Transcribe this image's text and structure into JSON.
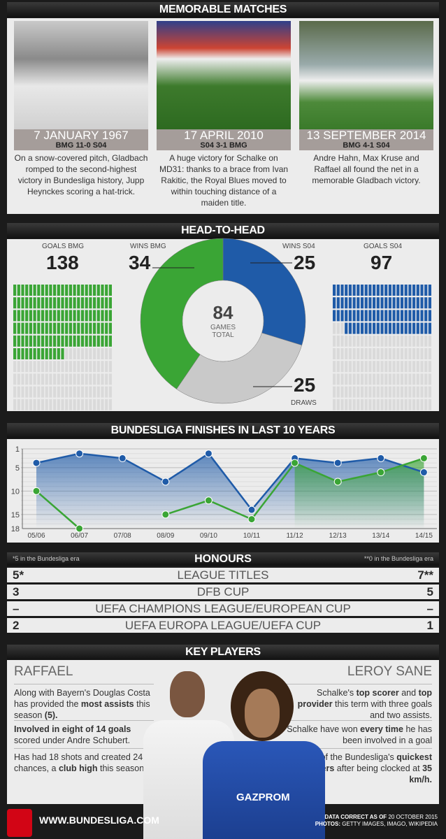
{
  "memorable": {
    "title": "MEMORABLE MATCHES",
    "matches": [
      {
        "date": "7 JANUARY 1967",
        "score": "BMG 11-0 S04",
        "text": "On a snow-covered pitch, Gladbach romped to the second-highest victory in Bundesliga history, Jupp Heynckes scoring a hat-trick."
      },
      {
        "date": "17 APRIL 2010",
        "score": "S04 3-1 BMG",
        "text": "A huge victory for Schalke on MD31: thanks to a brace from Ivan Rakitic, the Royal Blues moved to within touching distance of a maiden title."
      },
      {
        "date": "13 SEPTEMBER 2014",
        "score": "BMG 4-1 S04",
        "text": "Andre Hahn, Max Kruse and Raffael all found the net in a memorable Gladbach victory."
      }
    ]
  },
  "h2h": {
    "title": "HEAD-TO-HEAD",
    "goals_bmg_label": "GOALS BMG",
    "goals_bmg": "138",
    "wins_bmg_label": "WINS BMG",
    "wins_bmg": "34",
    "wins_s04_label": "WINS S04",
    "wins_s04": "25",
    "goals_s04_label": "GOALS S04",
    "goals_s04": "97",
    "total": "84",
    "total_label1": "GAMES",
    "total_label2": "TOTAL",
    "draws": "25",
    "draws_label": "DRAWS"
  },
  "colors": {
    "bmg": "#3aa535",
    "s04": "#1f5ba8",
    "draw": "#c9c9c9",
    "empty": "#dadada"
  },
  "chart_data": [
    {
      "type": "pie",
      "donut": true,
      "slices": [
        {
          "label": "WINS S04",
          "value": 25,
          "color": "#1f5ba8"
        },
        {
          "label": "DRAWS",
          "value": 25,
          "color": "#c9c9c9"
        },
        {
          "label": "WINS BMG",
          "value": 34,
          "color": "#3aa535"
        }
      ],
      "center_text": "84 GAMES TOTAL"
    },
    {
      "type": "pictogram",
      "series": [
        {
          "name": "GOALS BMG",
          "value": 138,
          "color": "#3aa535"
        },
        {
          "name": "GOALS S04",
          "value": 97,
          "color": "#1f5ba8"
        }
      ],
      "units_per_row": 25,
      "total_units": 250
    },
    {
      "type": "line",
      "title": "BUNDESLIGA FINISHES IN LAST 10 YEARS",
      "categories": [
        "05/06",
        "06/07",
        "07/08",
        "08/09",
        "09/10",
        "10/11",
        "11/12",
        "12/13",
        "13/14",
        "14/15"
      ],
      "series": [
        {
          "color": "#1f5ba8",
          "values": [
            4,
            2,
            3,
            8,
            2,
            14,
            3,
            4,
            3,
            6
          ]
        },
        {
          "color": "#3aa535",
          "values": [
            10,
            18,
            null,
            15,
            12,
            16,
            4,
            8,
            6,
            3
          ]
        }
      ],
      "yticks": [
        1,
        5,
        10,
        15,
        18
      ],
      "ylim": [
        1,
        18
      ],
      "y_inverted": true,
      "grid": true
    }
  ],
  "honours": {
    "title": "HONOURS",
    "note_left": "*5 in the Bundesliga era",
    "note_right": "**0 in the Bundesliga era",
    "rows": [
      {
        "left": "5*",
        "label": "LEAGUE TITLES",
        "right": "7**"
      },
      {
        "left": "3",
        "label": "DFB CUP",
        "right": "5"
      },
      {
        "left": "–",
        "label": "UEFA CHAMPIONS LEAGUE/EUROPEAN CUP",
        "right": "–"
      },
      {
        "left": "2",
        "label": "UEFA EUROPA LEAGUE/UEFA CUP",
        "right": "1"
      }
    ]
  },
  "players": {
    "title": "KEY PLAYERS",
    "left": {
      "name": "RAFFAEL",
      "facts": [
        [
          "Along with Bayern's Douglas Costa has provided the ",
          "most assists",
          " this season ",
          "(5)."
        ],
        [
          "",
          "Involved in eight of 14 goals",
          " scored under Andre Schubert.",
          ""
        ],
        [
          "Has had 18 shots and created 24 chances, a ",
          "club high",
          " this season.",
          ""
        ]
      ]
    },
    "right": {
      "name": "LEROY SANE",
      "facts": [
        [
          "Schalke's ",
          "top scorer",
          " and ",
          "top provider",
          " this term with three goals and two assists."
        ],
        [
          "Schalke have won ",
          "every time",
          " he has been involved in a goal",
          "",
          ""
        ],
        [
          "One of the Bundesliga's ",
          "quickest players",
          " after being clocked at ",
          "35 km/h.",
          ""
        ]
      ]
    }
  },
  "footer": {
    "logo_text": "BUNDESLIGA",
    "url": "WWW.BUNDESLIGA.COM",
    "data_note_bold": "DATA CORRECT AS OF",
    "data_note": "20 OCTOBER 2015",
    "photos_bold": "PHOTOS:",
    "photos": "GETTY IMAGES, IMAGO, WIKIPEDIA"
  }
}
